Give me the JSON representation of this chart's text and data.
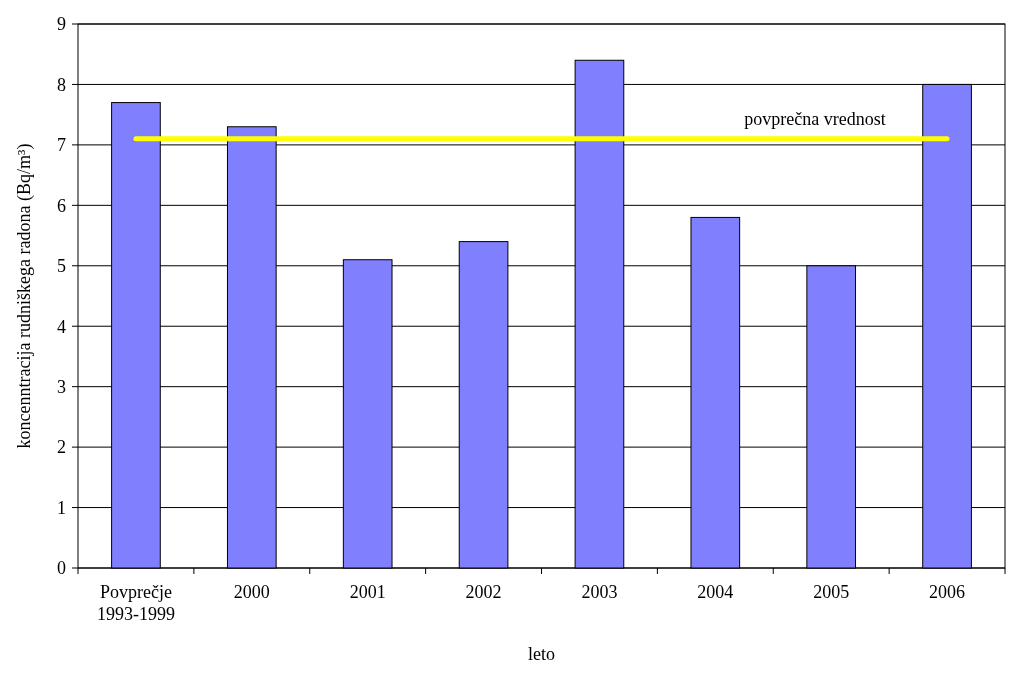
{
  "chart_data": {
    "type": "bar",
    "xlabel": "leto",
    "ylabel": "koncenntracija rudniškega radona (Bq/m³)",
    "categories": [
      "Povprečje\n1993-1999",
      "2000",
      "2001",
      "2002",
      "2003",
      "2004",
      "2005",
      "2006"
    ],
    "values": [
      7.7,
      7.3,
      5.1,
      5.4,
      8.4,
      5.8,
      5.0,
      8.0
    ],
    "color": "#8080ff",
    "ylim": [
      0,
      9
    ],
    "yticks": [
      0,
      1,
      2,
      3,
      4,
      5,
      6,
      7,
      8,
      9
    ],
    "grid": "y",
    "ref_lines": [
      {
        "axis": "y",
        "value": 7.1,
        "label": "povprečna vrednost",
        "color": "#ffff00"
      }
    ]
  }
}
